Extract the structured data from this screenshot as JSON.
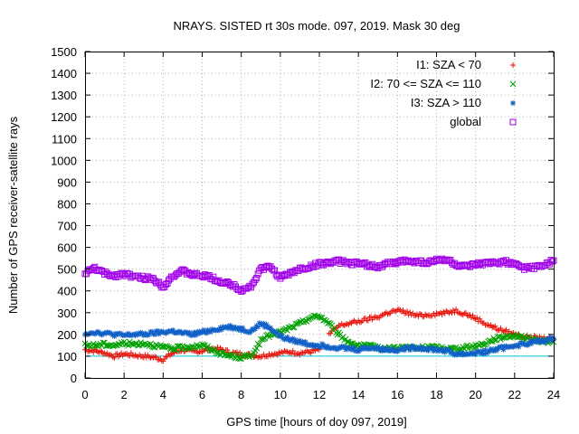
{
  "chart_data": {
    "type": "scatter",
    "title": "NRAYS. SISTED rt 30s mode. 097, 2019. Mask 30 deg",
    "xlabel": "GPS time [hours of doy 097, 2019]",
    "ylabel": "Number of GPS receiver-satellite rays",
    "xlim": [
      0,
      24
    ],
    "ylim": [
      0,
      1500
    ],
    "xticks": [
      "0",
      "2",
      "4",
      "6",
      "8",
      "10",
      "12",
      "14",
      "16",
      "18",
      "20",
      "22",
      "24"
    ],
    "yticks": [
      "0",
      "100",
      "200",
      "300",
      "400",
      "500",
      "600",
      "700",
      "800",
      "900",
      "1000",
      "1100",
      "1200",
      "1300",
      "1400",
      "1500"
    ],
    "grid": true,
    "legend_position": "top-right",
    "reference_line": {
      "y": 100,
      "color": "#00c8e0"
    },
    "series": [
      {
        "name": "I1: SZA < 70",
        "marker": "+",
        "color": "#e8160c",
        "x": [
          0,
          0.5,
          1,
          1.5,
          2,
          2.5,
          3,
          3.5,
          4,
          4.5,
          5,
          5.5,
          6,
          6.5,
          7,
          7.5,
          8,
          8.5,
          9,
          9.5,
          10,
          10.5,
          11,
          11.5,
          12
        ],
        "y": [
          130,
          125,
          115,
          100,
          110,
          105,
          100,
          95,
          85,
          115,
          130,
          120,
          125,
          135,
          130,
          115,
          110,
          105,
          100,
          110,
          115,
          120,
          115,
          120,
          130
        ]
      },
      {
        "name": "I1: SZA < 70",
        "marker": "+",
        "color": "#e8160c",
        "x": [
          12.5,
          13,
          13.5,
          14,
          14.5,
          15,
          15.5,
          16,
          16.5,
          17,
          17.5,
          18,
          18.5,
          19,
          19.5,
          20,
          20.5,
          21,
          21.5,
          22,
          22.5,
          23,
          23.5,
          24
        ],
        "y": [
          200,
          240,
          250,
          260,
          270,
          280,
          300,
          310,
          300,
          285,
          290,
          295,
          300,
          310,
          295,
          275,
          250,
          230,
          215,
          200,
          190,
          185,
          180,
          180
        ]
      },
      {
        "name": "I2: 70 <= SZA <= 110",
        "marker": "×",
        "color": "#00a000",
        "x": [
          0,
          0.5,
          1,
          1.5,
          2,
          2.5,
          3,
          3.5,
          4,
          4.5,
          5,
          5.5,
          6,
          6.5,
          7,
          7.5,
          8,
          8.5,
          9,
          9.5,
          10,
          10.5,
          11,
          11.5,
          12,
          12.5,
          13,
          13.5,
          14,
          14.5,
          15,
          15.5,
          16,
          16.5,
          17,
          17.5,
          18,
          18.5,
          19,
          19.5,
          20,
          20.5,
          21,
          21.5,
          22,
          22.5,
          23,
          23.5,
          24
        ],
        "y": [
          150,
          150,
          155,
          150,
          160,
          155,
          160,
          150,
          140,
          135,
          140,
          145,
          150,
          130,
          110,
          100,
          95,
          100,
          170,
          200,
          210,
          230,
          250,
          275,
          285,
          250,
          200,
          165,
          150,
          145,
          140,
          135,
          140,
          140,
          135,
          140,
          140,
          135,
          135,
          140,
          145,
          160,
          180,
          190,
          195,
          185,
          175,
          170,
          165
        ]
      },
      {
        "name": "I3: SZA > 110",
        "marker": "✱",
        "color": "#1060c8",
        "x": [
          0,
          0.5,
          1,
          1.5,
          2,
          2.5,
          3,
          3.5,
          4,
          4.5,
          5,
          5.5,
          6,
          6.5,
          7,
          7.5,
          8,
          8.5,
          9,
          9.5,
          10,
          10.5,
          11,
          11.5,
          12,
          12.5,
          13,
          13.5,
          14,
          14.5,
          15,
          15.5,
          16,
          16.5,
          17,
          17.5,
          18,
          18.5,
          19,
          19.5,
          20,
          20.5,
          21,
          21.5,
          22,
          22.5,
          23,
          23.5,
          24
        ],
        "y": [
          205,
          210,
          205,
          200,
          195,
          200,
          200,
          205,
          210,
          215,
          205,
          200,
          210,
          220,
          230,
          235,
          225,
          215,
          250,
          230,
          190,
          175,
          165,
          155,
          150,
          145,
          140,
          135,
          130,
          140,
          135,
          130,
          130,
          135,
          140,
          135,
          130,
          125,
          110,
          110,
          115,
          120,
          130,
          140,
          150,
          155,
          165,
          170,
          180
        ]
      },
      {
        "name": "global",
        "marker": "□",
        "color": "#a000e8",
        "x": [
          0,
          0.5,
          1,
          1.5,
          2,
          2.5,
          3,
          3.5,
          4,
          4.5,
          5,
          5.5,
          6,
          6.5,
          7,
          7.5,
          8,
          8.5,
          9,
          9.5,
          10,
          10.5,
          11,
          11.5,
          12,
          12.5,
          13,
          13.5,
          14,
          14.5,
          15,
          15.5,
          16,
          16.5,
          17,
          17.5,
          18,
          18.5,
          19,
          19.5,
          20,
          20.5,
          21,
          21.5,
          22,
          22.5,
          23,
          23.5,
          24
        ],
        "y": [
          480,
          505,
          480,
          470,
          480,
          465,
          460,
          455,
          420,
          470,
          490,
          475,
          470,
          460,
          440,
          430,
          405,
          420,
          500,
          510,
          460,
          480,
          500,
          510,
          525,
          530,
          535,
          530,
          525,
          520,
          510,
          525,
          530,
          540,
          535,
          530,
          540,
          545,
          520,
          510,
          520,
          525,
          530,
          535,
          520,
          505,
          510,
          515,
          540
        ]
      }
    ]
  }
}
